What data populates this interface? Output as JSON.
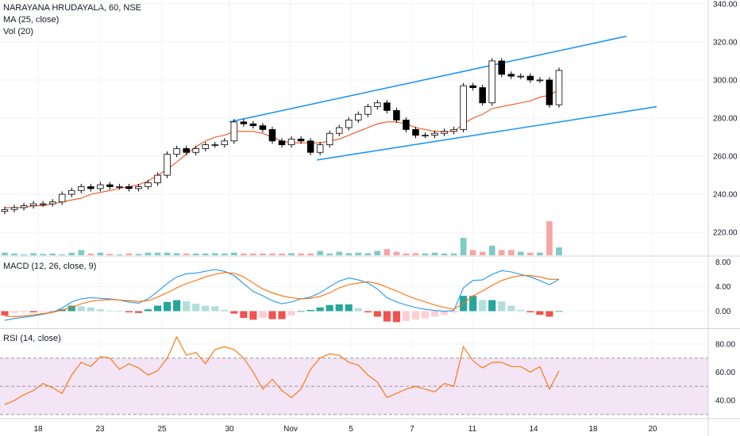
{
  "symbol": {
    "name": "NARAYANA HRUDAYALA",
    "interval": "60",
    "exchange": "NSE",
    "title": "NARAYANA HRUDAYALA, 60, NSE"
  },
  "indicators": {
    "ma": "MA (25, close)",
    "vol": "Vol (20)",
    "macd": "MACD (12, 26, close, 9)",
    "rsi": "RSI (14, close)"
  },
  "colors": {
    "up": "#26a69a",
    "down": "#ef5350",
    "candle_body": "#000000",
    "ma": "#f4511e",
    "channel": "#2196f3",
    "macd_line": "#2196f3",
    "signal_line": "#ff6d00",
    "rsi_line": "#ff6d00",
    "rsi_band": "#f3e5f5",
    "hist_up_strong": "#26a69a",
    "hist_up_weak": "#b2dfdb",
    "hist_down_strong": "#ef5350",
    "hist_down_weak": "#ffcdd2",
    "vol_up": "#80cbc4",
    "vol_down": "#f6a5a5"
  },
  "chart_data": [
    {
      "type": "candlestick",
      "title": "NARAYANA HRUDAYALA, 60, NSE",
      "x_tick_labels": [
        "18",
        "23",
        "25",
        "30",
        "Nov",
        "5",
        "7",
        "11",
        "14",
        "18",
        "20"
      ],
      "y_ticks": [
        220,
        240,
        260,
        280,
        300,
        320,
        340
      ],
      "y_tick_labels": [
        "220.00",
        "240.00",
        "260.00",
        "280.00",
        "300.00",
        "320.00",
        "340.00"
      ],
      "ylim": [
        208,
        342
      ],
      "grid": true,
      "close": [
        232,
        233,
        234,
        235,
        235,
        236,
        240,
        242,
        244,
        243,
        245,
        244,
        244,
        243,
        244,
        246,
        250,
        261,
        264,
        262,
        264,
        266,
        266,
        268,
        278,
        277,
        276,
        274,
        268,
        266,
        269,
        268,
        262,
        266,
        272,
        275,
        279,
        282,
        286,
        288,
        284,
        279,
        274,
        271,
        271,
        272,
        273,
        274,
        297,
        296,
        288,
        310,
        303,
        302,
        302,
        300,
        300,
        287,
        305
      ],
      "ma_25": [
        233,
        233,
        233,
        234,
        234,
        235,
        236,
        237,
        238,
        240,
        241,
        242,
        243,
        244,
        245,
        247,
        250,
        253,
        257,
        261,
        265,
        268,
        270,
        271,
        273,
        273,
        273,
        272,
        270,
        268,
        267,
        267,
        267,
        267,
        268,
        269,
        271,
        273,
        275,
        277,
        278,
        278,
        277,
        275,
        274,
        273,
        273,
        273,
        277,
        280,
        282,
        285,
        286,
        287,
        288,
        289,
        291,
        292,
        295
      ],
      "channel_upper": [
        [
          289,
          278
        ],
        [
          789,
          323
        ]
      ],
      "channel_lower": [
        [
          399,
          258
        ],
        [
          827,
          286
        ]
      ],
      "volume_rel": [
        0.15,
        0.1,
        0.05,
        0.12,
        0.08,
        0.1,
        0.05,
        0.15,
        0.3,
        0.1,
        0.15,
        0.08,
        0.05,
        0.1,
        0.08,
        0.15,
        0.15,
        0.15,
        0.12,
        0.1,
        0.1,
        0.1,
        0.12,
        0.1,
        0.15,
        0.1,
        0.1,
        0.1,
        0.1,
        0.1,
        0.12,
        0.1,
        0.1,
        0.25,
        0.1,
        0.2,
        0.12,
        0.15,
        0.12,
        0.25,
        0.35,
        0.2,
        0.1,
        0.12,
        0.1,
        0.15,
        0.1,
        0.1,
        1.0,
        0.3,
        0.2,
        0.55,
        0.3,
        0.3,
        0.2,
        0.15,
        0.15,
        1.95,
        0.45
      ]
    },
    {
      "type": "line",
      "title": "MACD (12, 26, close, 9)",
      "y_ticks": [
        0,
        4,
        8
      ],
      "y_tick_labels": [
        "0.00",
        "4.00",
        "8.00"
      ],
      "ylim": [
        -3,
        8.6
      ],
      "macd": [
        -1.5,
        -1.2,
        -1.0,
        -0.8,
        -0.5,
        -0.2,
        0.5,
        1.5,
        2.0,
        2.2,
        2.1,
        2.0,
        1.8,
        1.5,
        1.3,
        2.0,
        3.2,
        4.5,
        5.6,
        6.1,
        6.2,
        6.5,
        6.8,
        6.5,
        5.8,
        4.5,
        3.2,
        2.5,
        1.7,
        1.2,
        1.5,
        2.0,
        2.3,
        3.0,
        4.0,
        4.9,
        5.4,
        5.1,
        4.6,
        3.6,
        2.2,
        1.5,
        1.0,
        0.6,
        0.3,
        0.1,
        0.0,
        0.1,
        3.8,
        5.0,
        5.1,
        6.0,
        6.6,
        6.4,
        6.0,
        5.6,
        5.0,
        4.3,
        5.2
      ],
      "signal": [
        -0.8,
        -0.9,
        -0.8,
        -0.6,
        -0.4,
        -0.2,
        0.2,
        0.6,
        1.2,
        1.6,
        1.8,
        1.9,
        1.8,
        1.7,
        1.6,
        1.7,
        2.3,
        3.0,
        3.8,
        4.5,
        5.0,
        5.6,
        6.0,
        6.3,
        6.2,
        5.6,
        4.6,
        3.6,
        3.0,
        2.5,
        2.2,
        2.0,
        2.1,
        2.4,
        3.0,
        3.8,
        4.3,
        4.6,
        4.8,
        4.5,
        3.9,
        3.3,
        2.6,
        2.0,
        1.5,
        1.0,
        0.6,
        0.3,
        1.3,
        2.5,
        3.3,
        4.2,
        5.0,
        5.5,
        5.8,
        5.8,
        5.6,
        5.2,
        5.2
      ]
    },
    {
      "type": "line",
      "title": "RSI (14, close)",
      "y_ticks": [
        40,
        60,
        80
      ],
      "y_tick_labels": [
        "40.00",
        "60.00",
        "80.00"
      ],
      "ylim": [
        25,
        88
      ],
      "band": [
        30,
        70
      ],
      "values": [
        37,
        40,
        44,
        47,
        52,
        49,
        45,
        58,
        67,
        64,
        71,
        70,
        62,
        66,
        63,
        58,
        61,
        70,
        85,
        72,
        74,
        66,
        76,
        78,
        76,
        70,
        60,
        48,
        55,
        47,
        42,
        48,
        62,
        70,
        73,
        72,
        67,
        65,
        58,
        53,
        42,
        45,
        48,
        50,
        48,
        46,
        52,
        50,
        78,
        68,
        63,
        67,
        67,
        64,
        64,
        60,
        64,
        48,
        61
      ]
    }
  ]
}
